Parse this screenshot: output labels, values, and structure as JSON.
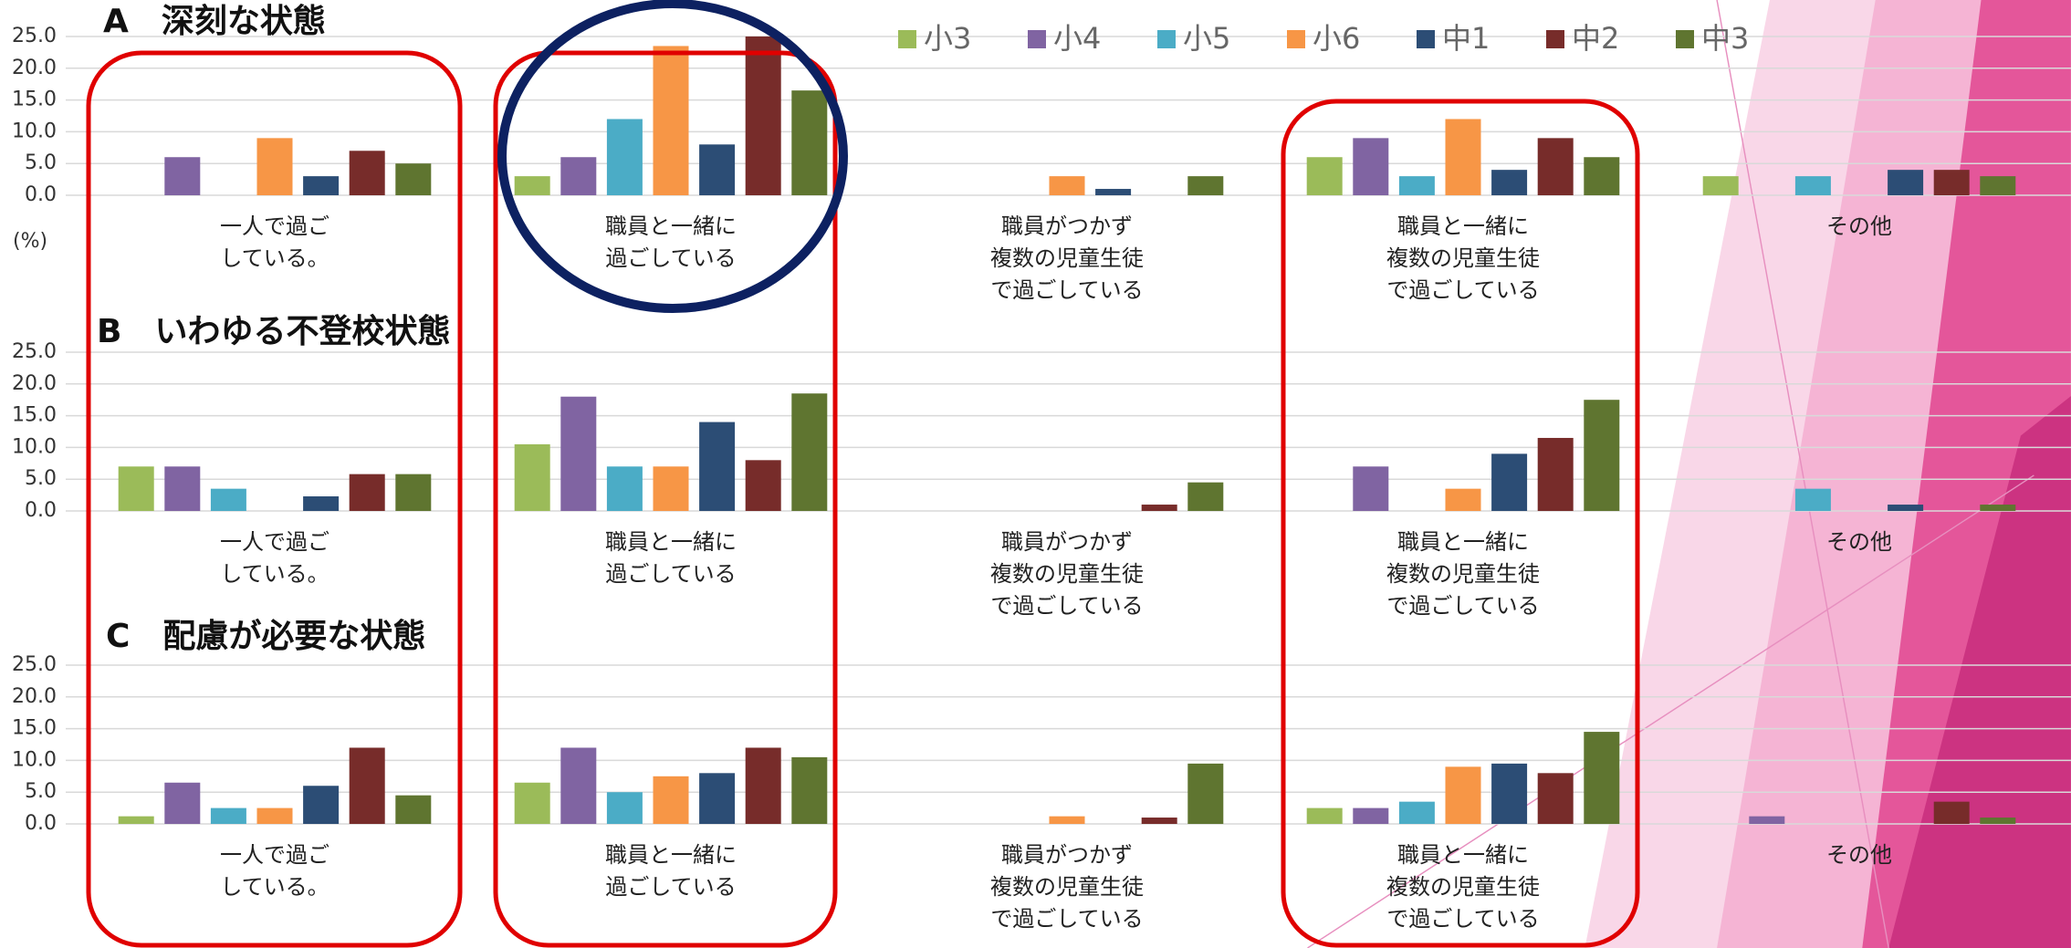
{
  "unit_label": "(%)",
  "chart_data": [
    {
      "type": "bar",
      "title": "A　深刻な状態",
      "categories": [
        [
          "一人で過ご",
          "している。"
        ],
        [
          "職員と一緒に",
          "過ごしている"
        ],
        [
          "職員がつかず",
          "複数の児童生徒",
          "で過ごしている"
        ],
        [
          "職員と一緒に",
          "複数の児童生徒",
          "で過ごしている"
        ],
        [
          "その他"
        ]
      ],
      "series": [
        {
          "name": "小3",
          "color": "#9bbb59",
          "values": [
            0,
            3,
            0,
            6,
            3
          ]
        },
        {
          "name": "小4",
          "color": "#8064a2",
          "values": [
            6,
            6,
            0,
            9,
            0
          ]
        },
        {
          "name": "小5",
          "color": "#4bacc6",
          "values": [
            0,
            12,
            0,
            3,
            3
          ]
        },
        {
          "name": "小6",
          "color": "#f79646",
          "values": [
            9,
            23.5,
            3,
            12,
            0
          ]
        },
        {
          "name": "中1",
          "color": "#2c4d75",
          "values": [
            3,
            8,
            1,
            4,
            4
          ]
        },
        {
          "name": "中2",
          "color": "#772c2a",
          "values": [
            7,
            25,
            0,
            9,
            4
          ]
        },
        {
          "name": "中3",
          "color": "#5f7530",
          "values": [
            5,
            16.5,
            3,
            6,
            3
          ]
        }
      ],
      "ylim": [
        0,
        25
      ],
      "yticks": [
        {
          "value": 0,
          "label": "0.0"
        },
        {
          "value": 5,
          "label": "5.0"
        },
        {
          "value": 10,
          "label": "10.0"
        },
        {
          "value": 15,
          "label": "15.0"
        },
        {
          "value": 20,
          "label": "20.0"
        },
        {
          "value": 25,
          "label": "25.0"
        }
      ],
      "grid": true
    },
    {
      "type": "bar",
      "title": "B　いわゆる不登校状態",
      "categories": [
        [
          "一人で過ご",
          "している。"
        ],
        [
          "職員と一緒に",
          "過ごしている"
        ],
        [
          "職員がつかず",
          "複数の児童生徒",
          "で過ごしている"
        ],
        [
          "職員と一緒に",
          "複数の児童生徒",
          "で過ごしている"
        ],
        [
          "その他"
        ]
      ],
      "series": [
        {
          "name": "小3",
          "color": "#9bbb59",
          "values": [
            7,
            10.5,
            0,
            0,
            0
          ]
        },
        {
          "name": "小4",
          "color": "#8064a2",
          "values": [
            7,
            18,
            0,
            7,
            0
          ]
        },
        {
          "name": "小5",
          "color": "#4bacc6",
          "values": [
            3.5,
            7,
            0,
            0,
            3.5
          ]
        },
        {
          "name": "小6",
          "color": "#f79646",
          "values": [
            0,
            7,
            0,
            3.5,
            0
          ]
        },
        {
          "name": "中1",
          "color": "#2c4d75",
          "values": [
            2.3,
            14,
            0,
            9,
            1
          ]
        },
        {
          "name": "中2",
          "color": "#772c2a",
          "values": [
            5.8,
            8,
            1,
            11.5,
            0
          ]
        },
        {
          "name": "中3",
          "color": "#5f7530",
          "values": [
            5.8,
            18.5,
            4.5,
            17.5,
            1
          ]
        }
      ],
      "ylim": [
        0,
        25
      ],
      "yticks": [
        {
          "value": 0,
          "label": "0.0"
        },
        {
          "value": 5,
          "label": "5.0"
        },
        {
          "value": 10,
          "label": "10.0"
        },
        {
          "value": 15,
          "label": "15.0"
        },
        {
          "value": 20,
          "label": "20.0"
        },
        {
          "value": 25,
          "label": "25.0"
        }
      ],
      "grid": true
    },
    {
      "type": "bar",
      "title": "C　配慮が必要な状態",
      "categories": [
        [
          "一人で過ご",
          "している。"
        ],
        [
          "職員と一緒に",
          "過ごしている"
        ],
        [
          "職員がつかず",
          "複数の児童生徒",
          "で過ごしている"
        ],
        [
          "職員と一緒に",
          "複数の児童生徒",
          "で過ごしている"
        ],
        [
          "その他"
        ]
      ],
      "series": [
        {
          "name": "小3",
          "color": "#9bbb59",
          "values": [
            1.2,
            6.5,
            0,
            2.5,
            0
          ]
        },
        {
          "name": "小4",
          "color": "#8064a2",
          "values": [
            6.5,
            12,
            0,
            2.5,
            1.2
          ]
        },
        {
          "name": "小5",
          "color": "#4bacc6",
          "values": [
            2.5,
            5,
            0,
            3.5,
            0
          ]
        },
        {
          "name": "小6",
          "color": "#f79646",
          "values": [
            2.5,
            7.5,
            1.2,
            9,
            0
          ]
        },
        {
          "name": "中1",
          "color": "#2c4d75",
          "values": [
            6,
            8,
            0,
            9.5,
            0
          ]
        },
        {
          "name": "中2",
          "color": "#772c2a",
          "values": [
            12,
            12,
            1,
            8,
            3.5
          ]
        },
        {
          "name": "中3",
          "color": "#5f7530",
          "values": [
            4.5,
            10.5,
            9.5,
            14.5,
            1
          ]
        }
      ],
      "ylim": [
        0,
        25
      ],
      "yticks": [
        {
          "value": 0,
          "label": "0.0"
        },
        {
          "value": 5,
          "label": "5.0"
        },
        {
          "value": 10,
          "label": "10.0"
        },
        {
          "value": 15,
          "label": "15.0"
        },
        {
          "value": 20,
          "label": "20.0"
        },
        {
          "value": 25,
          "label": "25.0"
        }
      ],
      "grid": true
    }
  ]
}
